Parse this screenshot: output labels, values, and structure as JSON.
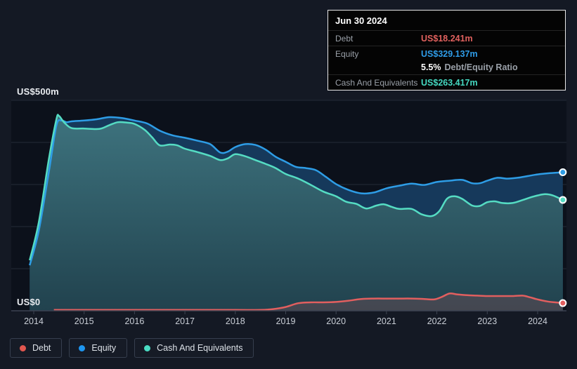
{
  "tooltip": {
    "date": "Jun 30 2024",
    "debt_label": "Debt",
    "debt_value": "US$18.241m",
    "equity_label": "Equity",
    "equity_value": "US$329.137m",
    "ratio_value": "5.5%",
    "ratio_label": "Debt/Equity Ratio",
    "cash_label": "Cash And Equivalents",
    "cash_value": "US$263.417m"
  },
  "axis": {
    "y_top_label": "US$500m",
    "y_bottom_label": "US$0"
  },
  "legend": {
    "debt": "Debt",
    "equity": "Equity",
    "cash": "Cash And Equivalents"
  },
  "colors": {
    "debt": "#e25f5f",
    "equity": "#2e9de6",
    "cash": "#55dcc3",
    "equity_fill": "#16395b",
    "cash_fill_top": "#3d727d",
    "cash_fill_bottom": "#21424e",
    "debt_fill": "rgba(226,95,95,0.18)",
    "gridline": "#242a37",
    "axis_line": "#3c4352",
    "tick_label": "#c9ced6",
    "plot_bg": "#0c111b",
    "page_bg": "#141924"
  },
  "chart_data": {
    "type": "area",
    "title": "Debt, Equity and Cash history (US$m)",
    "xlabel": "",
    "ylabel": "US$m",
    "ylim": [
      0,
      500
    ],
    "xlim": [
      2013.9,
      2024.6
    ],
    "x_ticks": [
      2014,
      2015,
      2016,
      2017,
      2018,
      2019,
      2020,
      2021,
      2022,
      2023,
      2024
    ],
    "y_gridlines": [
      100,
      200,
      300,
      400,
      500
    ],
    "grid": true,
    "legend_position": "bottom",
    "end_markers": true,
    "series": [
      {
        "name": "Equity",
        "points": [
          [
            2013.92,
            108
          ],
          [
            2014.1,
            190
          ],
          [
            2014.3,
            330
          ],
          [
            2014.45,
            440
          ],
          [
            2014.55,
            452
          ],
          [
            2014.65,
            448
          ],
          [
            2014.75,
            450
          ],
          [
            2015.0,
            452
          ],
          [
            2015.25,
            455
          ],
          [
            2015.5,
            460
          ],
          [
            2015.75,
            458
          ],
          [
            2016.0,
            452
          ],
          [
            2016.25,
            445
          ],
          [
            2016.5,
            428
          ],
          [
            2016.75,
            417
          ],
          [
            2017.0,
            411
          ],
          [
            2017.25,
            404
          ],
          [
            2017.5,
            396
          ],
          [
            2017.7,
            376
          ],
          [
            2017.85,
            378
          ],
          [
            2018.0,
            389
          ],
          [
            2018.2,
            396
          ],
          [
            2018.4,
            394
          ],
          [
            2018.6,
            383
          ],
          [
            2018.8,
            366
          ],
          [
            2019.0,
            354
          ],
          [
            2019.2,
            342
          ],
          [
            2019.4,
            339
          ],
          [
            2019.6,
            334
          ],
          [
            2019.8,
            318
          ],
          [
            2020.0,
            301
          ],
          [
            2020.25,
            287
          ],
          [
            2020.5,
            279
          ],
          [
            2020.75,
            281
          ],
          [
            2021.0,
            291
          ],
          [
            2021.25,
            297
          ],
          [
            2021.5,
            302
          ],
          [
            2021.75,
            299
          ],
          [
            2022.0,
            306
          ],
          [
            2022.25,
            309
          ],
          [
            2022.5,
            311
          ],
          [
            2022.7,
            303
          ],
          [
            2022.85,
            303
          ],
          [
            2023.0,
            309
          ],
          [
            2023.2,
            316
          ],
          [
            2023.4,
            314
          ],
          [
            2023.6,
            316
          ],
          [
            2023.8,
            320
          ],
          [
            2024.0,
            324
          ],
          [
            2024.25,
            327
          ],
          [
            2024.5,
            329.137
          ]
        ]
      },
      {
        "name": "Cash And Equivalents",
        "points": [
          [
            2013.92,
            120
          ],
          [
            2014.1,
            210
          ],
          [
            2014.3,
            360
          ],
          [
            2014.45,
            455
          ],
          [
            2014.5,
            463
          ],
          [
            2014.6,
            448
          ],
          [
            2014.75,
            434
          ],
          [
            2015.0,
            433
          ],
          [
            2015.3,
            432
          ],
          [
            2015.5,
            441
          ],
          [
            2015.67,
            448
          ],
          [
            2015.85,
            447
          ],
          [
            2016.0,
            444
          ],
          [
            2016.2,
            430
          ],
          [
            2016.35,
            412
          ],
          [
            2016.5,
            393
          ],
          [
            2016.7,
            395
          ],
          [
            2016.85,
            393
          ],
          [
            2017.0,
            385
          ],
          [
            2017.25,
            377
          ],
          [
            2017.5,
            368
          ],
          [
            2017.7,
            358
          ],
          [
            2017.85,
            362
          ],
          [
            2018.0,
            372
          ],
          [
            2018.2,
            367
          ],
          [
            2018.4,
            358
          ],
          [
            2018.6,
            349
          ],
          [
            2018.8,
            339
          ],
          [
            2019.0,
            325
          ],
          [
            2019.25,
            314
          ],
          [
            2019.5,
            299
          ],
          [
            2019.75,
            283
          ],
          [
            2020.0,
            272
          ],
          [
            2020.2,
            259
          ],
          [
            2020.4,
            254
          ],
          [
            2020.6,
            243
          ],
          [
            2020.8,
            250
          ],
          [
            2020.95,
            253
          ],
          [
            2021.1,
            247
          ],
          [
            2021.25,
            242
          ],
          [
            2021.5,
            242
          ],
          [
            2021.7,
            229
          ],
          [
            2021.9,
            225
          ],
          [
            2022.05,
            237
          ],
          [
            2022.2,
            266
          ],
          [
            2022.35,
            272
          ],
          [
            2022.5,
            266
          ],
          [
            2022.7,
            250
          ],
          [
            2022.85,
            249
          ],
          [
            2023.0,
            258
          ],
          [
            2023.15,
            260
          ],
          [
            2023.3,
            256
          ],
          [
            2023.5,
            256
          ],
          [
            2023.7,
            263
          ],
          [
            2023.85,
            269
          ],
          [
            2024.0,
            274
          ],
          [
            2024.15,
            277
          ],
          [
            2024.3,
            274
          ],
          [
            2024.5,
            263.417
          ]
        ]
      },
      {
        "name": "Debt",
        "points": [
          [
            2014.4,
            2
          ],
          [
            2015.0,
            2
          ],
          [
            2016.0,
            2
          ],
          [
            2017.0,
            2
          ],
          [
            2018.0,
            2
          ],
          [
            2018.5,
            2
          ],
          [
            2018.75,
            4
          ],
          [
            2019.0,
            9
          ],
          [
            2019.25,
            18
          ],
          [
            2019.5,
            20
          ],
          [
            2019.75,
            20
          ],
          [
            2020.0,
            21
          ],
          [
            2020.25,
            24
          ],
          [
            2020.5,
            28
          ],
          [
            2020.75,
            29
          ],
          [
            2021.0,
            29
          ],
          [
            2021.25,
            29
          ],
          [
            2021.5,
            29
          ],
          [
            2021.75,
            28
          ],
          [
            2021.95,
            27
          ],
          [
            2022.1,
            33
          ],
          [
            2022.25,
            41
          ],
          [
            2022.4,
            39
          ],
          [
            2022.6,
            37
          ],
          [
            2022.8,
            36
          ],
          [
            2023.0,
            35
          ],
          [
            2023.25,
            35
          ],
          [
            2023.5,
            35
          ],
          [
            2023.7,
            36
          ],
          [
            2023.85,
            32
          ],
          [
            2024.0,
            27
          ],
          [
            2024.2,
            22
          ],
          [
            2024.35,
            20
          ],
          [
            2024.5,
            18.241
          ]
        ]
      }
    ]
  }
}
